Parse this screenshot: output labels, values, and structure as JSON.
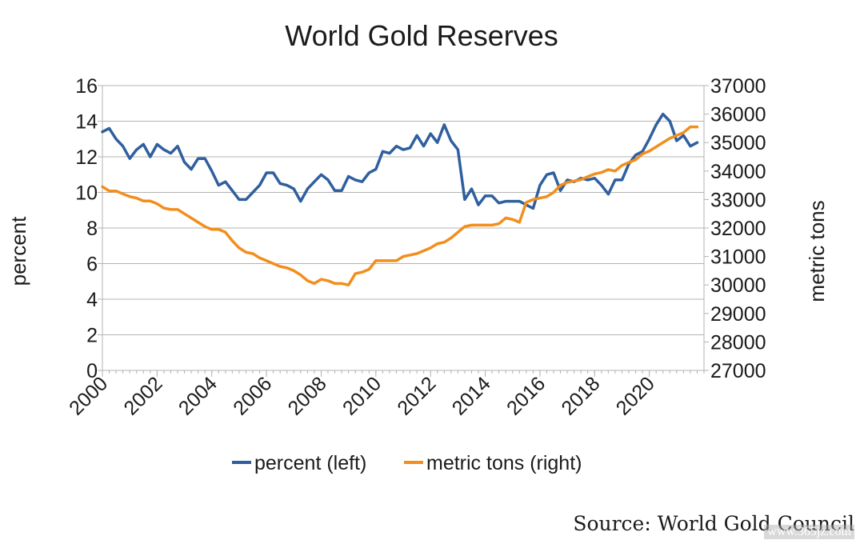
{
  "chart_data": {
    "type": "line",
    "title": "World Gold Reserves",
    "ylabel_left": "percent",
    "ylabel_right": "metric tons",
    "xlim": [
      2000,
      2022
    ],
    "ylim_left": [
      0,
      16
    ],
    "ylim_right": [
      27000,
      37000
    ],
    "x_ticks": [
      "2000",
      "2002",
      "2004",
      "2006",
      "2008",
      "2010",
      "2012",
      "2014",
      "2016",
      "2018",
      "2020"
    ],
    "y_ticks_left": [
      "0",
      "2",
      "4",
      "6",
      "8",
      "10",
      "12",
      "14",
      "16"
    ],
    "y_ticks_right": [
      "27000",
      "28000",
      "29000",
      "30000",
      "31000",
      "32000",
      "33000",
      "34000",
      "35000",
      "36000",
      "37000"
    ],
    "grid": true,
    "legend_position": "bottom",
    "series": [
      {
        "name": "percent (left)",
        "axis": "left",
        "color": "#2f5f9e",
        "x": [
          2000.0,
          2000.25,
          2000.5,
          2000.75,
          2001.0,
          2001.25,
          2001.5,
          2001.75,
          2002.0,
          2002.25,
          2002.5,
          2002.75,
          2003.0,
          2003.25,
          2003.5,
          2003.75,
          2004.0,
          2004.25,
          2004.5,
          2004.75,
          2005.0,
          2005.25,
          2005.5,
          2005.75,
          2006.0,
          2006.25,
          2006.5,
          2006.75,
          2007.0,
          2007.25,
          2007.5,
          2007.75,
          2008.0,
          2008.25,
          2008.5,
          2008.75,
          2009.0,
          2009.25,
          2009.5,
          2009.75,
          2010.0,
          2010.25,
          2010.5,
          2010.75,
          2011.0,
          2011.25,
          2011.5,
          2011.75,
          2012.0,
          2012.25,
          2012.5,
          2012.75,
          2013.0,
          2013.25,
          2013.5,
          2013.75,
          2014.0,
          2014.25,
          2014.5,
          2014.75,
          2015.0,
          2015.25,
          2015.5,
          2015.75,
          2016.0,
          2016.25,
          2016.5,
          2016.75,
          2017.0,
          2017.25,
          2017.5,
          2017.75,
          2018.0,
          2018.25,
          2018.5,
          2018.75,
          2019.0,
          2019.25,
          2019.5,
          2019.75,
          2020.0,
          2020.25,
          2020.5,
          2020.75,
          2021.0,
          2021.25,
          2021.5,
          2021.75
        ],
        "values": [
          13.4,
          13.6,
          13.0,
          12.6,
          11.9,
          12.4,
          12.7,
          12.0,
          12.7,
          12.4,
          12.2,
          12.6,
          11.7,
          11.3,
          11.9,
          11.9,
          11.2,
          10.4,
          10.6,
          10.1,
          9.6,
          9.6,
          10.0,
          10.4,
          11.1,
          11.1,
          10.5,
          10.4,
          10.2,
          9.5,
          10.2,
          10.6,
          11.0,
          10.7,
          10.1,
          10.1,
          10.9,
          10.7,
          10.6,
          11.1,
          11.3,
          12.3,
          12.2,
          12.6,
          12.4,
          12.5,
          13.2,
          12.6,
          13.3,
          12.8,
          13.8,
          12.9,
          12.4,
          9.6,
          10.2,
          9.3,
          9.8,
          9.8,
          9.4,
          9.5,
          9.5,
          9.5,
          9.3,
          9.1,
          10.4,
          11.0,
          11.1,
          10.1,
          10.7,
          10.6,
          10.8,
          10.7,
          10.8,
          10.4,
          9.9,
          10.7,
          10.7,
          11.6,
          12.1,
          12.3,
          13.0,
          13.8,
          14.4,
          14.0,
          12.9,
          13.2,
          12.6,
          12.8
        ]
      },
      {
        "name": "metric tons (right)",
        "axis": "right",
        "color": "#f28e1c",
        "x": [
          2000.0,
          2000.25,
          2000.5,
          2000.75,
          2001.0,
          2001.25,
          2001.5,
          2001.75,
          2002.0,
          2002.25,
          2002.5,
          2002.75,
          2003.0,
          2003.25,
          2003.5,
          2003.75,
          2004.0,
          2004.25,
          2004.5,
          2004.75,
          2005.0,
          2005.25,
          2005.5,
          2005.75,
          2006.0,
          2006.25,
          2006.5,
          2006.75,
          2007.0,
          2007.25,
          2007.5,
          2007.75,
          2008.0,
          2008.25,
          2008.5,
          2008.75,
          2009.0,
          2009.25,
          2009.5,
          2009.75,
          2010.0,
          2010.25,
          2010.5,
          2010.75,
          2011.0,
          2011.25,
          2011.5,
          2011.75,
          2012.0,
          2012.25,
          2012.5,
          2012.75,
          2013.0,
          2013.25,
          2013.5,
          2013.75,
          2014.0,
          2014.25,
          2014.5,
          2014.75,
          2015.0,
          2015.25,
          2015.5,
          2015.75,
          2016.0,
          2016.25,
          2016.5,
          2016.75,
          2017.0,
          2017.25,
          2017.5,
          2017.75,
          2018.0,
          2018.25,
          2018.5,
          2018.75,
          2019.0,
          2019.25,
          2019.5,
          2019.75,
          2020.0,
          2020.25,
          2020.5,
          2020.75,
          2021.0,
          2021.25,
          2021.5,
          2021.75
        ],
        "values": [
          33450,
          33300,
          33300,
          33200,
          33100,
          33050,
          32950,
          32950,
          32850,
          32700,
          32650,
          32650,
          32500,
          32350,
          32200,
          32050,
          31950,
          31950,
          31850,
          31550,
          31300,
          31150,
          31100,
          30950,
          30850,
          30750,
          30650,
          30600,
          30500,
          30350,
          30150,
          30050,
          30200,
          30150,
          30050,
          30050,
          30000,
          30400,
          30450,
          30550,
          30850,
          30850,
          30850,
          30850,
          31000,
          31050,
          31100,
          31200,
          31300,
          31450,
          31500,
          31650,
          31850,
          32050,
          32100,
          32100,
          32100,
          32100,
          32150,
          32350,
          32300,
          32200,
          32900,
          33000,
          33050,
          33100,
          33250,
          33500,
          33600,
          33650,
          33700,
          33800,
          33900,
          33950,
          34050,
          34000,
          34200,
          34300,
          34400,
          34600,
          34700,
          34850,
          35000,
          35150,
          35250,
          35350,
          35550,
          35550
        ]
      }
    ]
  },
  "source": "Source:  World Gold Council",
  "watermark": "www.365jz.com"
}
